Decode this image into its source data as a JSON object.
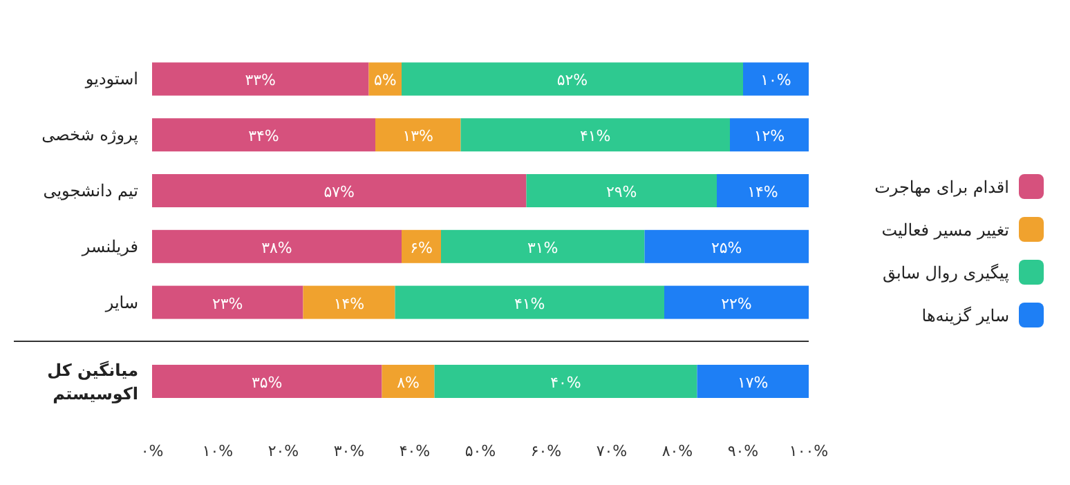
{
  "chart_data": [
    {
      "type": "bar",
      "orientation": "horizontal",
      "stacked": true,
      "categories": [
        "استودیو",
        "پروژه شخصی",
        "تیم دانشجویی",
        "فریلنسر",
        "سایر"
      ],
      "series": [
        {
          "name": "اقدام برای مهاجرت",
          "color": "#d6517d",
          "values": [
            33,
            34,
            57,
            38,
            23
          ],
          "value_labels": [
            "۳۳%",
            "۳۴%",
            "۵۷%",
            "۳۸%",
            "۲۳%"
          ]
        },
        {
          "name": "تغییر مسیر فعالیت",
          "color": "#f0a22e",
          "values": [
            5,
            13,
            null,
            6,
            14
          ],
          "value_labels": [
            "۵%",
            "۱۳%",
            null,
            "۶%",
            "۱۴%"
          ]
        },
        {
          "name": "پیگیری روال سابق",
          "color": "#2ec990",
          "values": [
            52,
            41,
            29,
            31,
            41
          ],
          "value_labels": [
            "۵۲%",
            "۴۱%",
            "۲۹%",
            "۳۱%",
            "۴۱%"
          ]
        },
        {
          "name": "سایر گزینه‌ها",
          "color": "#1e7ff5",
          "values": [
            10,
            12,
            14,
            25,
            22
          ],
          "value_labels": [
            "۱۰%",
            "۱۲%",
            "۱۴%",
            "۲۵%",
            "۲۲%"
          ]
        }
      ],
      "xlim": [
        0,
        100
      ],
      "tick_labels": "y",
      "legend": "right"
    },
    {
      "type": "bar",
      "orientation": "horizontal",
      "stacked": true,
      "categories": [
        "میانگین کل\nاکوسیستم"
      ],
      "series": [
        {
          "color": "#d6517d",
          "values": [
            35
          ],
          "value_labels": [
            "۳۵%"
          ]
        },
        {
          "color": "#f0a22e",
          "values": [
            8
          ],
          "value_labels": [
            "۸%"
          ]
        },
        {
          "color": "#2ec990",
          "values": [
            40
          ],
          "value_labels": [
            "۴۰%"
          ]
        },
        {
          "color": "#1e7ff5",
          "values": [
            17
          ],
          "value_labels": [
            "۱۷%"
          ]
        }
      ],
      "xlim": [
        0,
        100
      ],
      "xticks": [
        {
          "value": 0,
          "label": "۰%"
        },
        {
          "value": 10,
          "label": "۱۰%"
        },
        {
          "value": 20,
          "label": "۲۰%"
        },
        {
          "value": 30,
          "label": "۳۰%"
        },
        {
          "value": 40,
          "label": "۴۰%"
        },
        {
          "value": 50,
          "label": "۵۰%"
        },
        {
          "value": 60,
          "label": "۶۰%"
        },
        {
          "value": 70,
          "label": "۷۰%"
        },
        {
          "value": 80,
          "label": "۸۰%"
        },
        {
          "value": 90,
          "label": "۹۰%"
        },
        {
          "value": 100,
          "label": "۱۰۰%"
        }
      ]
    }
  ]
}
